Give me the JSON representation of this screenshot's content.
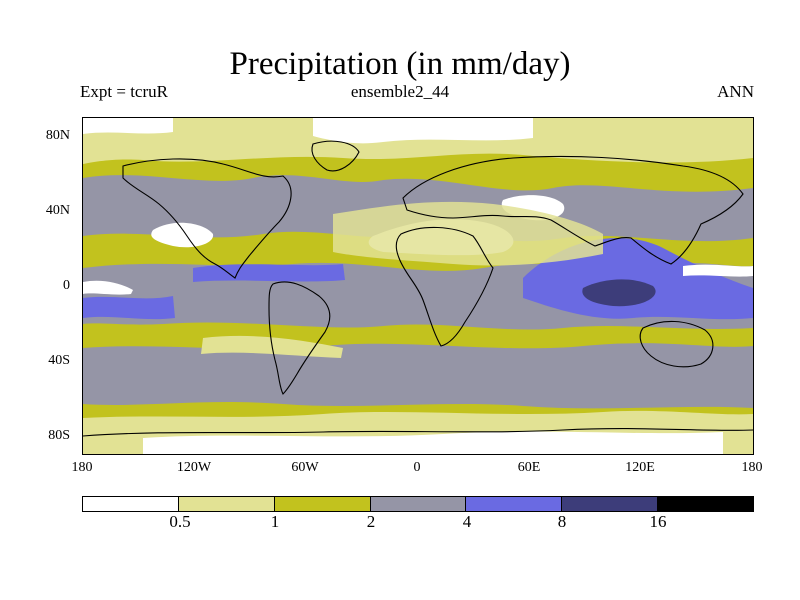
{
  "title": "Precipitation (in mm/day)",
  "subtitle_left": "Expt = tcruR",
  "subtitle_center": "ensemble2_44",
  "subtitle_right": "ANN",
  "map": {
    "projection": "equirectangular",
    "lat_range": [
      -90,
      90
    ],
    "lon_range": [
      -180,
      180
    ],
    "y_ticks": [
      "80N",
      "40N",
      "0",
      "40S",
      "80S"
    ],
    "x_ticks": [
      "180",
      "120W",
      "60W",
      "0",
      "60E",
      "120E",
      "180"
    ],
    "coastlines": "black"
  },
  "colorbar": {
    "colors": [
      "#ffffff",
      "#e2e294",
      "#c2c21e",
      "#9595a6",
      "#6a6ae2",
      "#3d3d7a",
      "#000000"
    ],
    "labels": [
      "0.5",
      "1",
      "2",
      "4",
      "8",
      "16"
    ]
  }
}
